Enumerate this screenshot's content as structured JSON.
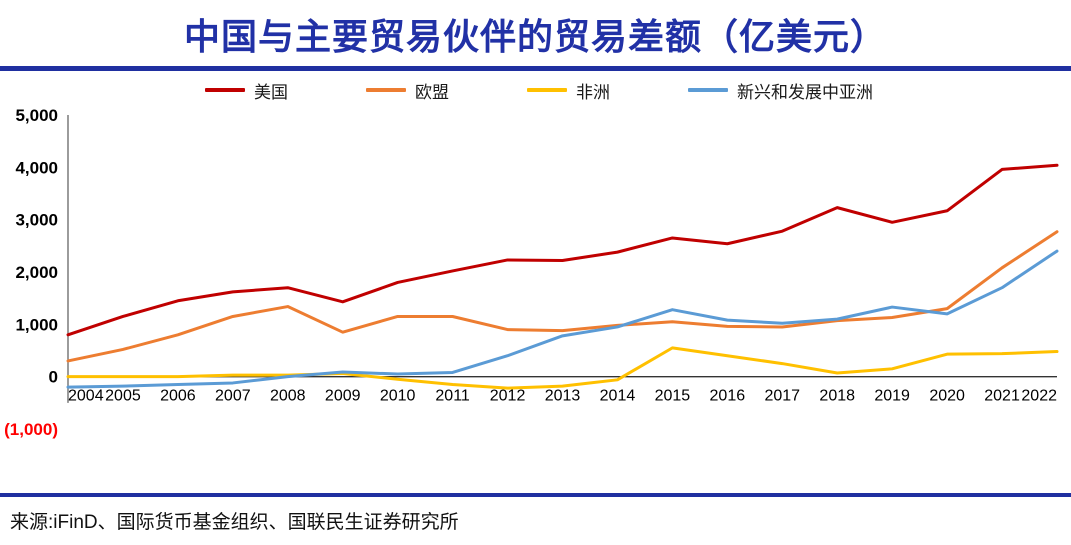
{
  "header": {
    "title": "中国与主要贸易伙伴的贸易差额（亿美元）"
  },
  "footer": {
    "source": "来源:iFinD、国际货币基金组织、国联民生证券研究所"
  },
  "colors": {
    "title": "#2131A6",
    "divider": "#1F2FA0",
    "axis": "#595959",
    "zero_line": "#333333",
    "tick_label": "#000000",
    "negative_tick_label": "#FF0000"
  },
  "chart_data": {
    "type": "line",
    "title": "中国与主要贸易伙伴的贸易差额（亿美元）",
    "xlabel": "",
    "ylabel": "",
    "x": [
      2004,
      2005,
      2006,
      2007,
      2008,
      2009,
      2010,
      2011,
      2012,
      2013,
      2014,
      2015,
      2016,
      2017,
      2018,
      2019,
      2020,
      2021,
      2022
    ],
    "series": [
      {
        "name": "美国",
        "color": "#C00000",
        "values": [
          800,
          1150,
          1450,
          1620,
          1700,
          1430,
          1800,
          2020,
          2230,
          2220,
          2380,
          2650,
          2540,
          2780,
          3230,
          2950,
          3170,
          3960,
          4040
        ]
      },
      {
        "name": "欧盟",
        "color": "#ED7D31",
        "values": [
          300,
          520,
          800,
          1150,
          1340,
          850,
          1150,
          1150,
          900,
          880,
          980,
          1050,
          960,
          950,
          1070,
          1130,
          1300,
          2080,
          2770
        ]
      },
      {
        "name": "非洲",
        "color": "#FFC000",
        "values": [
          0,
          0,
          0,
          30,
          30,
          60,
          -50,
          -150,
          -220,
          -180,
          -60,
          550,
          400,
          250,
          70,
          150,
          430,
          440,
          480
        ]
      },
      {
        "name": "新兴和发展中亚洲",
        "color": "#5B9BD5",
        "values": [
          -200,
          -180,
          -150,
          -120,
          0,
          90,
          50,
          80,
          400,
          780,
          950,
          1280,
          1080,
          1020,
          1100,
          1330,
          1200,
          1700,
          2400
        ]
      }
    ],
    "ylim": [
      -1000,
      5000
    ],
    "ytick_step": 1000,
    "negative_tick_format": "parentheses",
    "grid": false,
    "legend_position": "top"
  }
}
